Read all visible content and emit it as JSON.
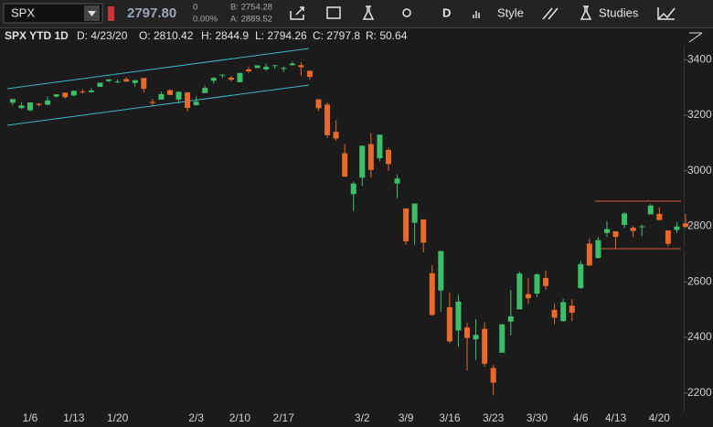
{
  "toolbar": {
    "symbol": "SPX",
    "last": "2797.80",
    "change": "0",
    "change_pct": "0.00%",
    "bid": "B: 2754.28",
    "ask": "A: 2889.52",
    "period": "D",
    "style": "Style",
    "studies": "Studies"
  },
  "header": {
    "title": "SPX YTD 1D",
    "date": "D: 4/23/20",
    "open": "O: 2810.42",
    "high": "H: 2844.9",
    "low": "L: 2794.26",
    "close": "C: 2797.8",
    "range": "R: 50.64"
  },
  "chart_data": {
    "type": "candlestick",
    "categories": [
      null,
      null,
      "1/6",
      null,
      null,
      null,
      null,
      "1/13",
      null,
      null,
      null,
      null,
      "1/20",
      null,
      null,
      null,
      null,
      null,
      null,
      null,
      null,
      "2/3",
      null,
      null,
      null,
      null,
      "2/10",
      null,
      null,
      null,
      null,
      "2/17",
      null,
      null,
      null,
      null,
      null,
      null,
      null,
      null,
      "3/2",
      null,
      null,
      null,
      null,
      "3/9",
      null,
      null,
      null,
      null,
      "3/16",
      null,
      null,
      null,
      null,
      "3/23",
      null,
      null,
      null,
      null,
      "3/30",
      null,
      null,
      null,
      null,
      "4/6",
      null,
      null,
      null,
      "4/13",
      null,
      null,
      null,
      null,
      "4/20",
      null,
      null,
      null
    ],
    "open": [
      3245,
      3226,
      3218,
      3241,
      3238,
      3267,
      3281,
      3271,
      3285,
      3283,
      3302,
      3323,
      3321,
      3330,
      3316,
      3334,
      3248,
      3256,
      3290,
      3256,
      3282,
      3236,
      3280,
      3324,
      3344,
      3335,
      3319,
      3365,
      3370,
      3365,
      3378,
      3369,
      3380,
      3380,
      3360,
      3257,
      3238,
      3140,
      3063,
      2916,
      2975,
      3096,
      3045,
      3075,
      2954,
      2864,
      2813,
      2825,
      2631,
      2569,
      2509,
      2425,
      2436,
      2393,
      2431,
      2290,
      2345,
      2457,
      2501,
      2556,
      2558,
      2614,
      2499,
      2459,
      2514,
      2578,
      2738,
      2686,
      2776,
      2782,
      2805,
      2795,
      2799,
      2843,
      2845,
      2785,
      2787,
      2810.42
    ],
    "high": [
      3258,
      3246,
      3246,
      3244,
      3267,
      3275,
      3282,
      3288,
      3294,
      3298,
      3317,
      3329,
      3329,
      3337,
      3326,
      3334,
      3259,
      3285,
      3293,
      3286,
      3282,
      3268,
      3306,
      3337,
      3347,
      3341,
      3352,
      3375,
      3381,
      3385,
      3380,
      3375,
      3393,
      3390,
      3360,
      3259,
      3247,
      3182,
      3097,
      2959,
      3091,
      3136,
      3130,
      3083,
      2985,
      2863,
      2882,
      2825,
      2660,
      2711,
      2562,
      2553,
      2453,
      2466,
      2454,
      2300,
      2449,
      2571,
      2637,
      2615,
      2631,
      2641,
      2522,
      2539,
      2538,
      2676,
      2756,
      2761,
      2818,
      2782,
      2852,
      2801,
      2806,
      2880,
      2868,
      2785,
      2815,
      2844.9
    ],
    "low": [
      3235,
      3222,
      3214,
      3232,
      3236,
      3264,
      3260,
      3268,
      3278,
      3280,
      3302,
      3318,
      3316,
      3320,
      3302,
      3281,
      3234,
      3256,
      3271,
      3242,
      3214,
      3235,
      3280,
      3313,
      3334,
      3322,
      3318,
      3352,
      3369,
      3360,
      3367,
      3356,
      3378,
      3342,
      3328,
      3215,
      3118,
      3108,
      2977,
      2855,
      2945,
      2976,
      3034,
      2999,
      2901,
      2734,
      2734,
      2707,
      2478,
      2492,
      2380,
      2367,
      2281,
      2319,
      2295,
      2192,
      2345,
      2407,
      2501,
      2520,
      2545,
      2571,
      2448,
      2455,
      2459,
      2574,
      2657,
      2684,
      2762,
      2721,
      2794,
      2761,
      2765,
      2843,
      2820,
      2727,
      2776,
      2794.26
    ],
    "close": [
      3258,
      3235,
      3246,
      3237,
      3253,
      3275,
      3265,
      3288,
      3283,
      3289,
      3317,
      3329,
      3321,
      3321,
      3326,
      3295,
      3244,
      3276,
      3273,
      3284,
      3226,
      3249,
      3298,
      3334,
      3346,
      3328,
      3352,
      3358,
      3379,
      3374,
      3380,
      3370,
      3386,
      3373,
      3338,
      3225,
      3128,
      3116,
      2979,
      2954,
      3090,
      3003,
      3130,
      3024,
      2972,
      2746,
      2882,
      2741,
      2481,
      2711,
      2386,
      2529,
      2398,
      2409,
      2305,
      2237,
      2447,
      2476,
      2630,
      2541,
      2627,
      2585,
      2471,
      2527,
      2489,
      2664,
      2659,
      2750,
      2790,
      2762,
      2846,
      2783,
      2800,
      2875,
      2823,
      2737,
      2799,
      2797.8
    ],
    "up_color": "#3dbf6a",
    "down_color": "#e8692b",
    "ylim": [
      2140,
      3460
    ],
    "yticks": [
      2200,
      2400,
      2600,
      2800,
      3000,
      3200,
      3400
    ]
  }
}
